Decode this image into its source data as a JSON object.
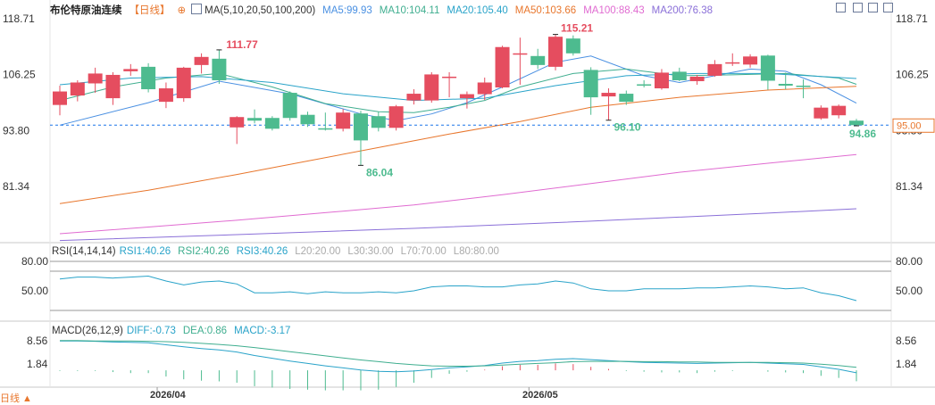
{
  "header": {
    "instrument": "布伦特原油连续",
    "period": "【日线】",
    "period_icon": "plus-circle-icon",
    "ma_toggle_icon": "checkbox-icon",
    "ma_label": "MA(5,10,20,50,100,200)",
    "ma_values": [
      {
        "text": "MA5:99.93",
        "color": "#4a90e2"
      },
      {
        "text": "MA10:104.11",
        "color": "#3fae8f"
      },
      {
        "text": "MA20:105.40",
        "color": "#29a3c9"
      },
      {
        "text": "MA50:103.66",
        "color": "#e8762c"
      },
      {
        "text": "MA100:88.43",
        "color": "#e06bd1"
      },
      {
        "text": "MA200:76.38",
        "color": "#8a6fd8"
      }
    ]
  },
  "toolbar": {
    "icons": [
      "crosshair-icon",
      "zoom-icon",
      "split-icon",
      "fullscreen-icon"
    ]
  },
  "footer": {
    "period_button": "日线 ▲",
    "date_labels": [
      "2026/04",
      "2026/05"
    ]
  },
  "chart_data": [
    {
      "type": "candlestick",
      "title": "布伦特原油连续",
      "y_ticks": [
        118.71,
        106.25,
        93.8,
        81.34
      ],
      "ylim": [
        69.0,
        118.71
      ],
      "last_price": 95.0,
      "price_line_label": "95.00",
      "annotations": [
        {
          "text": "111.77",
          "type": "high"
        },
        {
          "text": "86.04",
          "type": "low"
        },
        {
          "text": "115.21",
          "type": "high"
        },
        {
          "text": "96.10",
          "type": "low"
        },
        {
          "text": "94.86",
          "type": "low"
        }
      ],
      "candles": [
        {
          "o": 99.5,
          "h": 103.8,
          "l": 97.2,
          "c": 102.5
        },
        {
          "o": 101.6,
          "h": 105.0,
          "l": 100.3,
          "c": 104.5
        },
        {
          "o": 104.3,
          "h": 107.8,
          "l": 102.2,
          "c": 106.5
        },
        {
          "o": 101.0,
          "h": 106.8,
          "l": 99.5,
          "c": 106.2
        },
        {
          "o": 107.0,
          "h": 108.6,
          "l": 106.0,
          "c": 107.5
        },
        {
          "o": 108.0,
          "h": 108.8,
          "l": 102.3,
          "c": 103.0
        },
        {
          "o": 100.2,
          "h": 104.5,
          "l": 98.8,
          "c": 103.2
        },
        {
          "o": 101.0,
          "h": 108.0,
          "l": 100.2,
          "c": 107.8
        },
        {
          "o": 108.4,
          "h": 111.0,
          "l": 106.5,
          "c": 110.2
        },
        {
          "o": 109.8,
          "h": 111.8,
          "l": 104.2,
          "c": 105.0
        },
        {
          "o": 94.5,
          "h": 97.0,
          "l": 90.8,
          "c": 96.8
        },
        {
          "o": 96.6,
          "h": 98.5,
          "l": 95.4,
          "c": 96.0
        },
        {
          "o": 96.6,
          "h": 97.0,
          "l": 93.8,
          "c": 94.2
        },
        {
          "o": 102.2,
          "h": 102.5,
          "l": 96.0,
          "c": 96.6
        },
        {
          "o": 97.3,
          "h": 98.0,
          "l": 94.6,
          "c": 95.2
        },
        {
          "o": 94.3,
          "h": 97.8,
          "l": 93.8,
          "c": 94.0
        },
        {
          "o": 94.2,
          "h": 98.6,
          "l": 93.6,
          "c": 97.8
        },
        {
          "o": 97.6,
          "h": 98.2,
          "l": 86.0,
          "c": 91.6
        },
        {
          "o": 97.0,
          "h": 98.0,
          "l": 93.6,
          "c": 94.4
        },
        {
          "o": 94.4,
          "h": 99.5,
          "l": 93.8,
          "c": 99.2
        },
        {
          "o": 100.5,
          "h": 103.0,
          "l": 99.6,
          "c": 102.0
        },
        {
          "o": 100.5,
          "h": 106.8,
          "l": 100.0,
          "c": 106.3
        },
        {
          "o": 105.5,
          "h": 106.8,
          "l": 101.2,
          "c": 105.8
        },
        {
          "o": 101.0,
          "h": 102.5,
          "l": 98.7,
          "c": 101.9
        },
        {
          "o": 101.9,
          "h": 105.6,
          "l": 100.6,
          "c": 104.5
        },
        {
          "o": 103.4,
          "h": 112.7,
          "l": 103.2,
          "c": 112.4
        },
        {
          "o": 111.0,
          "h": 114.5,
          "l": 104.0,
          "c": 111.0
        },
        {
          "o": 110.4,
          "h": 112.0,
          "l": 107.5,
          "c": 108.4
        },
        {
          "o": 108.0,
          "h": 115.2,
          "l": 107.2,
          "c": 114.7
        },
        {
          "o": 114.3,
          "h": 115.0,
          "l": 110.5,
          "c": 111.0
        },
        {
          "o": 107.3,
          "h": 107.9,
          "l": 97.3,
          "c": 101.2
        },
        {
          "o": 101.4,
          "h": 103.2,
          "l": 96.1,
          "c": 102.2
        },
        {
          "o": 102.0,
          "h": 102.7,
          "l": 99.5,
          "c": 100.2
        },
        {
          "o": 104.1,
          "h": 105.0,
          "l": 103.4,
          "c": 103.8
        },
        {
          "o": 103.2,
          "h": 107.5,
          "l": 102.9,
          "c": 106.7
        },
        {
          "o": 106.9,
          "h": 107.8,
          "l": 104.8,
          "c": 105.0
        },
        {
          "o": 104.8,
          "h": 106.2,
          "l": 104.0,
          "c": 105.8
        },
        {
          "o": 106.0,
          "h": 109.5,
          "l": 105.8,
          "c": 108.6
        },
        {
          "o": 109.0,
          "h": 111.0,
          "l": 108.2,
          "c": 109.0
        },
        {
          "o": 108.5,
          "h": 110.8,
          "l": 107.8,
          "c": 110.3
        },
        {
          "o": 110.5,
          "h": 110.7,
          "l": 102.9,
          "c": 104.9
        },
        {
          "o": 104.2,
          "h": 106.7,
          "l": 103.0,
          "c": 103.8
        },
        {
          "o": 103.8,
          "h": 105.2,
          "l": 101.0,
          "c": 103.6
        },
        {
          "o": 96.5,
          "h": 99.4,
          "l": 96.2,
          "c": 98.9
        },
        {
          "o": 97.2,
          "h": 99.6,
          "l": 96.5,
          "c": 99.3
        },
        {
          "o": 96.0,
          "h": 96.4,
          "l": 94.9,
          "c": 95.0
        }
      ],
      "ma_lines": [
        {
          "name": "MA5",
          "color": "#4a90e2",
          "points": [
            [
              0,
              95.0
            ],
            [
              5,
              100.0
            ],
            [
              9,
              104.8
            ],
            [
              13,
              102.0
            ],
            [
              17,
              97.5
            ],
            [
              19,
              96.0
            ],
            [
              21,
              97.5
            ],
            [
              23,
              100.0
            ],
            [
              25,
              103.5
            ],
            [
              28,
              109.0
            ],
            [
              30,
              110.4
            ],
            [
              33,
              106.0
            ],
            [
              35,
              104.5
            ],
            [
              37,
              106.0
            ],
            [
              39,
              107.5
            ],
            [
              41,
              107.0
            ],
            [
              43,
              104.0
            ],
            [
              45,
              99.9
            ]
          ]
        },
        {
          "o": 0,
          "name": "MA10",
          "color": "#3fae8f",
          "points": [
            [
              0,
              100.5
            ],
            [
              3,
              103.5
            ],
            [
              6,
              105.5
            ],
            [
              9,
              106.5
            ],
            [
              12,
              103.5
            ],
            [
              15,
              99.8
            ],
            [
              18,
              98.0
            ],
            [
              20,
              97.8
            ],
            [
              22,
              99.0
            ],
            [
              24,
              100.5
            ],
            [
              26,
              103.5
            ],
            [
              29,
              106.5
            ],
            [
              32,
              107.5
            ],
            [
              35,
              106.0
            ],
            [
              38,
              106.2
            ],
            [
              41,
              106.5
            ],
            [
              44,
              105.5
            ],
            [
              45,
              104.1
            ]
          ]
        },
        {
          "name": "MA20",
          "color": "#29a3c9",
          "points": [
            [
              0,
              104.0
            ],
            [
              4,
              105.5
            ],
            [
              8,
              105.8
            ],
            [
              12,
              104.5
            ],
            [
              16,
              102.0
            ],
            [
              20,
              100.5
            ],
            [
              24,
              101.0
            ],
            [
              28,
              103.8
            ],
            [
              32,
              106.0
            ],
            [
              36,
              106.5
            ],
            [
              40,
              106.5
            ],
            [
              45,
              105.4
            ]
          ]
        },
        {
          "name": "MA50",
          "color": "#e8762c",
          "points": [
            [
              0,
              77.5
            ],
            [
              5,
              80.5
            ],
            [
              10,
              84.0
            ],
            [
              14,
              87.0
            ],
            [
              18,
              90.0
            ],
            [
              22,
              93.0
            ],
            [
              26,
              95.8
            ],
            [
              30,
              99.0
            ],
            [
              35,
              101.2
            ],
            [
              40,
              102.8
            ],
            [
              45,
              103.66
            ]
          ]
        },
        {
          "name": "MA100",
          "color": "#e06bd1",
          "points": [
            [
              0,
              70.8
            ],
            [
              5,
              72.3
            ],
            [
              10,
              73.8
            ],
            [
              15,
              75.5
            ],
            [
              20,
              77.2
            ],
            [
              25,
              79.5
            ],
            [
              30,
              82.0
            ],
            [
              35,
              84.5
            ],
            [
              40,
              86.5
            ],
            [
              45,
              88.43
            ]
          ]
        },
        {
          "name": "MA200",
          "color": "#8a6fd8",
          "points": [
            [
              0,
              69.3
            ],
            [
              10,
              70.6
            ],
            [
              20,
              72.0
            ],
            [
              30,
              73.6
            ],
            [
              40,
              75.4
            ],
            [
              45,
              76.38
            ]
          ]
        }
      ]
    },
    {
      "type": "line",
      "title": "RSI",
      "label": "RSI(14,14,14)",
      "values_text": [
        {
          "text": "RSI1:40.26",
          "color": "#29a3c9"
        },
        {
          "text": "RSI2:40.26",
          "color": "#3fae8f"
        },
        {
          "text": "RSI3:40.26",
          "color": "#29a3c9"
        },
        {
          "text": "L20:20.00",
          "color": "#aaaaaa"
        },
        {
          "text": "L30:30.00",
          "color": "#aaaaaa"
        },
        {
          "text": "L70:70.00",
          "color": "#aaaaaa"
        },
        {
          "text": "L80:80.00",
          "color": "#aaaaaa"
        }
      ],
      "y_ticks": [
        80.0,
        50.0
      ],
      "ylim": [
        28,
        90
      ],
      "ref_lines": [
        80,
        70,
        30
      ],
      "series": [
        {
          "name": "RSI1",
          "values": [
            62,
            64,
            64,
            63,
            64,
            65,
            60,
            56,
            59,
            60,
            57,
            48,
            48,
            49,
            47,
            49,
            48,
            48,
            49,
            48,
            50,
            54,
            55,
            55,
            54,
            54,
            56,
            57,
            60,
            58,
            52,
            50,
            50,
            52,
            52,
            52,
            53,
            53,
            54,
            55,
            54,
            52,
            53,
            48,
            45,
            40
          ]
        }
      ]
    },
    {
      "type": "bar",
      "title": "MACD",
      "label": "MACD(26,12,9)",
      "values_text": [
        {
          "text": "DIFF:-0.73",
          "color": "#29a3c9"
        },
        {
          "text": "DEA:0.86",
          "color": "#3fae8f"
        },
        {
          "text": "MACD:-3.17",
          "color": "#29a3c9"
        }
      ],
      "y_ticks": [
        8.56,
        1.84
      ],
      "ylim": [
        -8.0,
        9.5
      ],
      "diff": [
        8.5,
        8.5,
        8.4,
        8.2,
        8.1,
        8.0,
        7.4,
        6.8,
        6.3,
        5.9,
        5.3,
        4.3,
        3.5,
        2.7,
        2.0,
        1.3,
        0.7,
        0.1,
        -0.3,
        -0.4,
        -0.2,
        0.2,
        0.7,
        1.0,
        1.4,
        2.1,
        2.6,
        2.8,
        3.2,
        3.4,
        3.1,
        2.8,
        2.5,
        2.3,
        2.2,
        2.1,
        2.0,
        2.1,
        2.2,
        2.3,
        2.1,
        1.9,
        1.7,
        1.0,
        0.3,
        -0.73
      ],
      "dea": [
        8.6,
        8.6,
        8.5,
        8.5,
        8.5,
        8.4,
        8.3,
        8.1,
        7.8,
        7.5,
        7.1,
        6.6,
        6.0,
        5.4,
        4.8,
        4.2,
        3.6,
        3.0,
        2.5,
        2.0,
        1.6,
        1.3,
        1.2,
        1.2,
        1.3,
        1.5,
        1.8,
        2.0,
        2.2,
        2.5,
        2.6,
        2.6,
        2.6,
        2.5,
        2.5,
        2.4,
        2.4,
        2.3,
        2.3,
        2.3,
        2.3,
        2.2,
        2.1,
        1.8,
        1.4,
        0.86
      ],
      "macd": [
        -0.2,
        -0.2,
        -0.2,
        -0.5,
        -0.8,
        -0.8,
        -1.8,
        -2.6,
        -3.0,
        -3.2,
        -3.6,
        -4.6,
        -5.0,
        -5.4,
        -5.6,
        -5.8,
        -5.8,
        -5.8,
        -5.6,
        -4.8,
        -3.6,
        -2.2,
        -1.0,
        -0.4,
        0.2,
        1.2,
        1.6,
        1.6,
        2.0,
        1.8,
        1.0,
        0.4,
        -0.2,
        -0.4,
        -0.6,
        -0.6,
        -0.8,
        -0.4,
        -0.2,
        0.0,
        -0.4,
        -0.6,
        -0.8,
        -1.6,
        -2.2,
        -3.17
      ]
    }
  ]
}
